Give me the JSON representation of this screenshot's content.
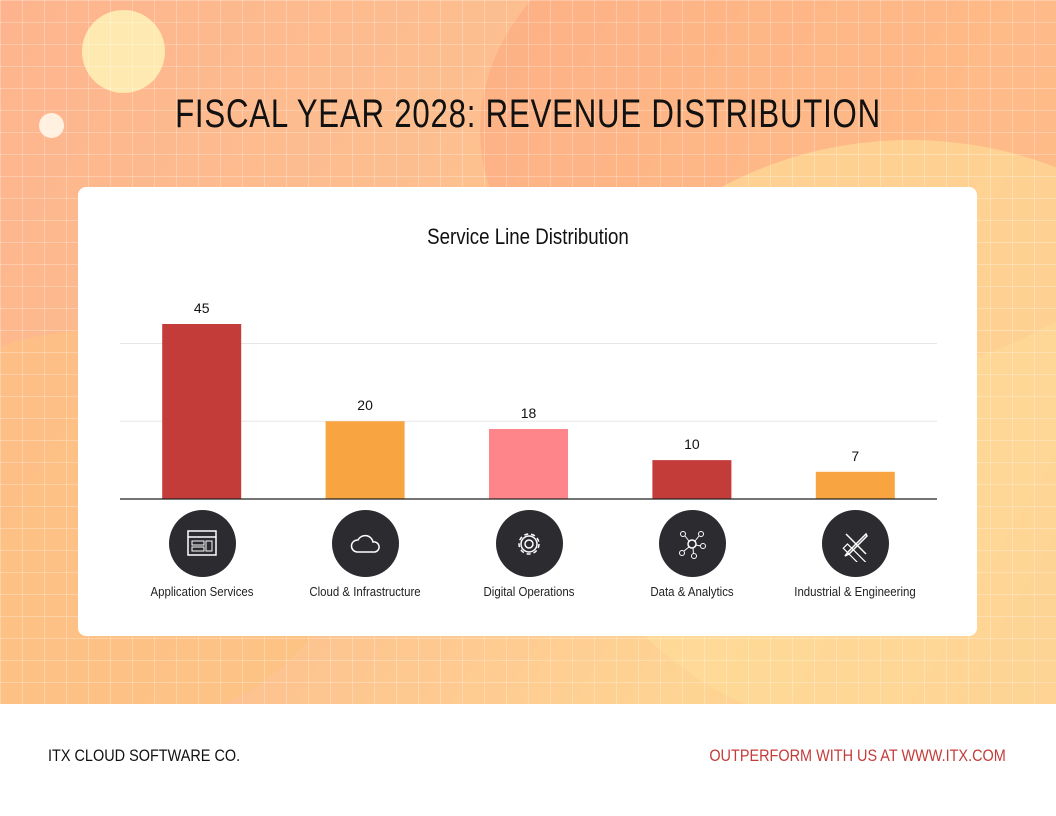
{
  "title": "FISCAL YEAR 2028: REVENUE DISTRIBUTION",
  "chart_data": {
    "type": "bar",
    "title": "Service Line Distribution",
    "categories": [
      "Application Services",
      "Cloud & Infrastructure",
      "Digital Operations",
      "Data & Analytics",
      "Industrial & Engineering"
    ],
    "values": [
      45,
      20,
      18,
      10,
      7
    ],
    "colors": [
      "#c43c3a",
      "#f8a541",
      "#fe868a",
      "#c43c3a",
      "#f8a541"
    ],
    "icons": [
      "browser-window-icon",
      "cloud-icon",
      "gear-icon",
      "network-icon",
      "ruler-pencil-icon"
    ],
    "ylim": [
      0,
      45
    ],
    "gridlines": [
      20,
      40
    ],
    "grid": true,
    "data_labels": true
  },
  "footer": {
    "company": "ITX CLOUD SOFTWARE CO.",
    "tagline": "OUTPERFORM WITH US AT WWW.ITX.COM",
    "tagline_color": "#c43c3a"
  }
}
